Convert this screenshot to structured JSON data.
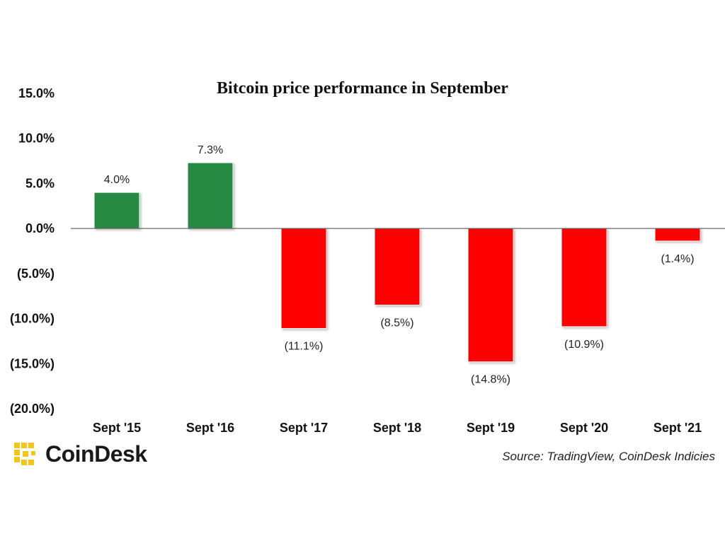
{
  "brand": {
    "name": "CoinDesk",
    "logo_icon": "coindesk-logo-icon",
    "logo_color": "#F5C518"
  },
  "source": "Source: TradingView, CoinDesk Indicies",
  "chart_data": {
    "type": "bar",
    "title": "Bitcoin price performance in September",
    "xlabel": "",
    "ylabel": "",
    "categories": [
      "Sept '15",
      "Sept '16",
      "Sept '17",
      "Sept '18",
      "Sept '19",
      "Sept '20",
      "Sept '21"
    ],
    "values": [
      4.0,
      7.3,
      -11.1,
      -8.5,
      -14.8,
      -10.9,
      -1.4
    ],
    "data_labels": [
      "4.0%",
      "7.3%",
      "(11.1%)",
      "(8.5%)",
      "(14.8%)",
      "(10.9%)",
      "(1.4%)"
    ],
    "ylim": [
      -20,
      15
    ],
    "yticks": [
      15,
      10,
      5,
      0,
      -5,
      -10,
      -15,
      -20
    ],
    "ytick_labels": [
      "15.0%",
      "10.0%",
      "5.0%",
      "0.0%",
      "(5.0%)",
      "(10.0%)",
      "(15.0%)",
      "(20.0%)"
    ],
    "colors": {
      "positive": "#268A43",
      "negative": "#FF0000",
      "axis": "#444444"
    },
    "grid": false,
    "legend": "none"
  }
}
